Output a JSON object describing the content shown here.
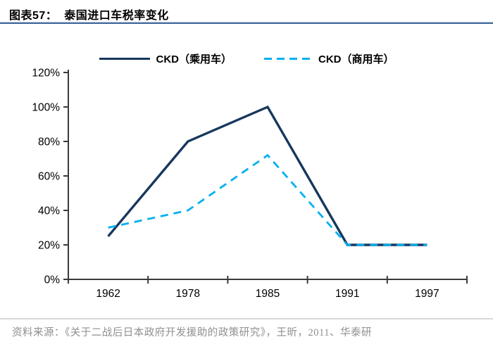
{
  "figure": {
    "title": "图表57：  泰国进口车税率变化",
    "source": "资料来源：《关于二战后日本政府开发援助的政策研究》，王昕，2011、华泰研"
  },
  "colors": {
    "passenger_line": "#17375e",
    "commercial_line": "#00b0f0",
    "axis": "#3a3a3a",
    "title_rule": "#44699d",
    "source_text": "#8f8f8f"
  },
  "chart_data": {
    "type": "line",
    "title": "泰国进口车税率变化",
    "categories": [
      "1962",
      "1978",
      "1985",
      "1991",
      "1997"
    ],
    "series": [
      {
        "name": "CKD（乘用车）",
        "values": [
          25,
          80,
          100,
          20,
          20
        ],
        "color": "#17375e",
        "style": "solid"
      },
      {
        "name": "CKD（商用车）",
        "values": [
          30,
          40,
          72,
          20,
          20
        ],
        "color": "#00b0f0",
        "style": "dashed"
      }
    ],
    "xlabel": "",
    "ylabel": "",
    "ylim": [
      0,
      120
    ],
    "ytick_step": 20,
    "ytick_labels": [
      "0%",
      "20%",
      "40%",
      "60%",
      "80%",
      "100%",
      "120%"
    ],
    "legend_position": "top",
    "grid": false
  }
}
